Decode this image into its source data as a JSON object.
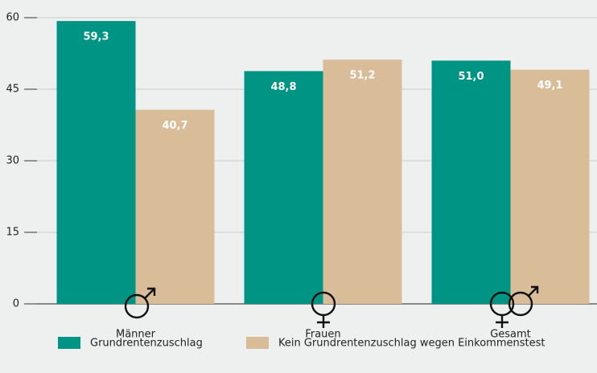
{
  "chart_data": {
    "type": "bar",
    "categories": [
      "Männer",
      "Frauen",
      "Gesamt"
    ],
    "series": [
      {
        "name": "Grundrentenzuschlag",
        "color": "#009485",
        "values": [
          59.3,
          48.8,
          51.0
        ],
        "value_labels": [
          "59,3",
          "48,8",
          "51,0"
        ]
      },
      {
        "name": "Kein Grundrentenzuschlag wegen Einkommenstest",
        "color": "#d9bc98",
        "values": [
          40.7,
          51.2,
          49.1
        ],
        "value_labels": [
          "40,7",
          "51,2",
          "49,1"
        ]
      }
    ],
    "ylim": [
      0,
      60
    ],
    "yticks": [
      0,
      15,
      30,
      45,
      60
    ],
    "grid": true
  }
}
